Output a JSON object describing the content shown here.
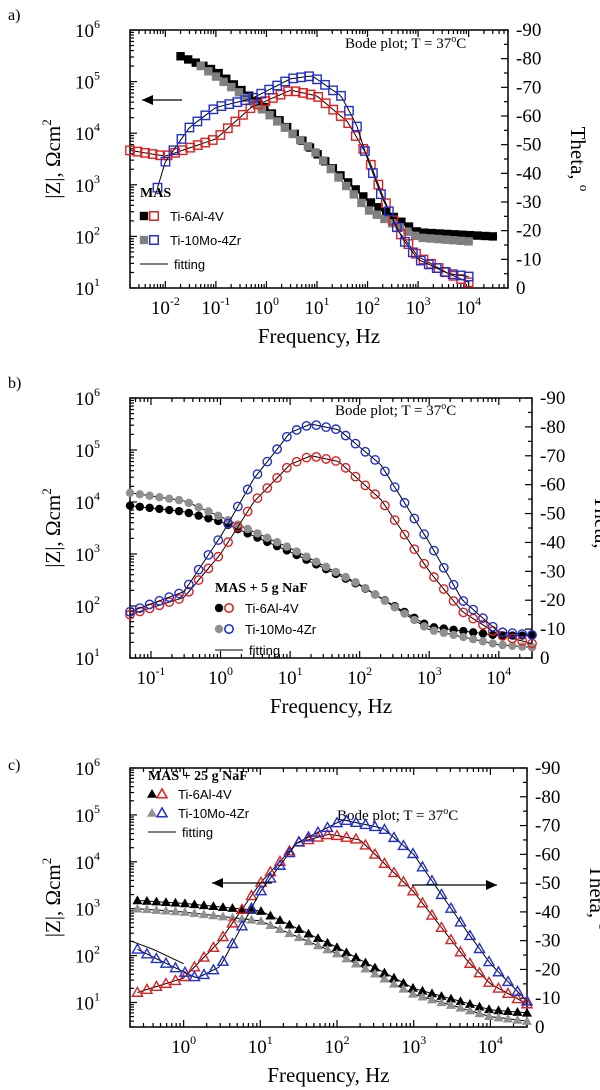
{
  "chart_data": [
    {
      "type": "line",
      "panel_label": "a)",
      "title": "Bode plot; T = 37°C",
      "title_parts": {
        "prefix": "Bode plot; T = 37",
        "sup": "o",
        "suffix": "C"
      },
      "xlabel": "Frequency, Hz",
      "ylabel_left": "|Z|, Ωcm",
      "ylabel_left_sup": "2",
      "ylabel_right": "Theta, ",
      "ylabel_right_sup": "o",
      "x_scale": "log",
      "xlim": [
        0.002,
        60000
      ],
      "ylim_left": [
        10,
        1000000
      ],
      "ylim_right": [
        0,
        -90
      ],
      "x_ticks": [
        {
          "value": 0.01,
          "base": "10",
          "exp": "-2"
        },
        {
          "value": 0.1,
          "base": "10",
          "exp": "-1"
        },
        {
          "value": 1,
          "base": "10",
          "exp": "0"
        },
        {
          "value": 10,
          "base": "10",
          "exp": "1"
        },
        {
          "value": 100,
          "base": "10",
          "exp": "2"
        },
        {
          "value": 1000,
          "base": "10",
          "exp": "3"
        },
        {
          "value": 10000,
          "base": "10",
          "exp": "4"
        }
      ],
      "y_left_ticks": [
        {
          "value": 10,
          "base": "10",
          "exp": "1"
        },
        {
          "value": 100,
          "base": "10",
          "exp": "2"
        },
        {
          "value": 1000,
          "base": "10",
          "exp": "3"
        },
        {
          "value": 10000,
          "base": "10",
          "exp": "4"
        },
        {
          "value": 100000,
          "base": "10",
          "exp": "5"
        },
        {
          "value": 1000000,
          "base": "10",
          "exp": "6"
        }
      ],
      "y_right_ticks": [
        "0",
        "-10",
        "-20",
        "-30",
        "-40",
        "-50",
        "-60",
        "-70",
        "-80",
        "-90"
      ],
      "legend": {
        "heading": "MAS",
        "entries": [
          "Ti-6Al-4V",
          "Ti-10Mo-4Zr",
          "fitting"
        ],
        "placement": "lower-left"
      },
      "arrows": [
        {
          "direction": "left",
          "axis": "left"
        }
      ],
      "series": [
        {
          "name": "Ti-6Al-4V",
          "quantity": "modulus",
          "marker": "square-filled",
          "color": "#000000",
          "x_range": [
            0.02,
            30000
          ],
          "points": 42,
          "anchors": [
            [
              0.02,
              310000
            ],
            [
              0.1,
              160000
            ],
            [
              1,
              30000
            ],
            [
              10,
              4000
            ],
            [
              100,
              500
            ],
            [
              1000,
              120
            ],
            [
              30000,
              100
            ]
          ]
        },
        {
          "name": "Ti-10Mo-4Zr",
          "quantity": "modulus",
          "marker": "square-filled",
          "color": "#808080",
          "x_range": [
            0.05,
            10000
          ],
          "points": 36,
          "anchors": [
            [
              0.05,
              200000
            ],
            [
              0.3,
              60000
            ],
            [
              1,
              25000
            ],
            [
              10,
              4000
            ],
            [
              100,
              330
            ],
            [
              1000,
              95
            ],
            [
              10000,
              80
            ]
          ]
        },
        {
          "name": "Ti-6Al-4V",
          "quantity": "phase",
          "marker": "square-open",
          "color": "#e02020",
          "x_range": [
            0.002,
            10000
          ],
          "points": 46,
          "anchors": [
            [
              0.002,
              -48
            ],
            [
              0.01,
              -46
            ],
            [
              0.1,
              -52
            ],
            [
              0.5,
              -63
            ],
            [
              3,
              -69
            ],
            [
              10,
              -67
            ],
            [
              40,
              -58
            ],
            [
              100,
              -46
            ],
            [
              200,
              -32
            ],
            [
              400,
              -20
            ],
            [
              1000,
              -11
            ],
            [
              4000,
              -5
            ],
            [
              10000,
              -2
            ]
          ]
        },
        {
          "name": "Ti-10Mo-4Zr",
          "quantity": "phase",
          "marker": "square-open",
          "color": "#2030d0",
          "x_range": [
            0.007,
            10000
          ],
          "points": 40,
          "anchors": [
            [
              0.007,
              -35
            ],
            [
              0.01,
              -44
            ],
            [
              0.03,
              -56
            ],
            [
              0.1,
              -63
            ],
            [
              0.5,
              -66
            ],
            [
              3,
              -73
            ],
            [
              8,
              -74
            ],
            [
              30,
              -67
            ],
            [
              60,
              -57
            ],
            [
              100,
              -45
            ],
            [
              200,
              -31
            ],
            [
              500,
              -17
            ],
            [
              1000,
              -10
            ],
            [
              4000,
              -5
            ],
            [
              10000,
              -4
            ]
          ]
        }
      ]
    },
    {
      "type": "line",
      "panel_label": "b)",
      "title": "Bode plot; T = 37°C",
      "title_parts": {
        "prefix": "Bode plot; T = 37",
        "sup": "o",
        "suffix": "C"
      },
      "xlabel": "Frequency, Hz",
      "ylabel_left": "|Z|, Ωcm",
      "ylabel_left_sup": "2",
      "ylabel_right": "Theta, ",
      "ylabel_right_sup": "o",
      "x_scale": "log",
      "xlim": [
        0.05,
        30000
      ],
      "ylim_left": [
        10,
        1000000
      ],
      "ylim_right": [
        0,
        -90
      ],
      "x_ticks": [
        {
          "value": 0.1,
          "base": "10",
          "exp": "-1"
        },
        {
          "value": 1,
          "base": "10",
          "exp": "0"
        },
        {
          "value": 10,
          "base": "10",
          "exp": "1"
        },
        {
          "value": 100,
          "base": "10",
          "exp": "2"
        },
        {
          "value": 1000,
          "base": "10",
          "exp": "3"
        },
        {
          "value": 10000,
          "base": "10",
          "exp": "4"
        }
      ],
      "y_left_ticks": [
        {
          "value": 10,
          "base": "10",
          "exp": "1"
        },
        {
          "value": 100,
          "base": "10",
          "exp": "2"
        },
        {
          "value": 1000,
          "base": "10",
          "exp": "3"
        },
        {
          "value": 10000,
          "base": "10",
          "exp": "4"
        },
        {
          "value": 100000,
          "base": "10",
          "exp": "5"
        },
        {
          "value": 1000000,
          "base": "10",
          "exp": "6"
        }
      ],
      "y_right_ticks": [
        "0",
        "-10",
        "-20",
        "-30",
        "-40",
        "-50",
        "-60",
        "-70",
        "-80",
        "-90"
      ],
      "legend": {
        "heading": "MAS + 5 g NaF",
        "entries": [
          "Ti-6Al-4V",
          "Ti-10Mo-4Zr",
          "fitting"
        ],
        "placement": "lower-center"
      },
      "arrows": [],
      "series": [
        {
          "name": "Ti-6Al-4V",
          "quantity": "modulus",
          "marker": "circle-filled",
          "color": "#000000",
          "x_range": [
            0.05,
            30000
          ],
          "points": 42,
          "anchors": [
            [
              0.05,
              8500
            ],
            [
              0.3,
              6500
            ],
            [
              1,
              4200
            ],
            [
              10,
              1100
            ],
            [
              100,
              250
            ],
            [
              1000,
              40
            ],
            [
              10000,
              27
            ],
            [
              30000,
              27
            ]
          ]
        },
        {
          "name": "Ti-10Mo-4Zr",
          "quantity": "modulus",
          "marker": "circle-filled",
          "color": "#909090",
          "x_range": [
            0.05,
            30000
          ],
          "points": 42,
          "anchors": [
            [
              0.05,
              15000
            ],
            [
              0.3,
              10500
            ],
            [
              1,
              5200
            ],
            [
              10,
              1300
            ],
            [
              100,
              260
            ],
            [
              1000,
              35
            ],
            [
              10000,
              18
            ],
            [
              30000,
              16
            ]
          ]
        },
        {
          "name": "Ti-6Al-4V",
          "quantity": "phase",
          "marker": "circle-open",
          "color": "#e02020",
          "x_range": [
            0.05,
            30000
          ],
          "points": 42,
          "anchors": [
            [
              0.05,
              -15
            ],
            [
              0.3,
              -21
            ],
            [
              1,
              -36
            ],
            [
              3,
              -54
            ],
            [
              10,
              -67
            ],
            [
              20,
              -70
            ],
            [
              50,
              -68
            ],
            [
              200,
              -55
            ],
            [
              1000,
              -30
            ],
            [
              3000,
              -16
            ],
            [
              10000,
              -8
            ],
            [
              30000,
              -5
            ]
          ]
        },
        {
          "name": "Ti-10Mo-4Zr",
          "quantity": "phase",
          "marker": "circle-open",
          "color": "#2030d0",
          "x_range": [
            0.05,
            30000
          ],
          "points": 42,
          "anchors": [
            [
              0.05,
              -16
            ],
            [
              0.3,
              -23
            ],
            [
              1,
              -42
            ],
            [
              3,
              -62
            ],
            [
              10,
              -78
            ],
            [
              20,
              -81
            ],
            [
              50,
              -79
            ],
            [
              200,
              -67
            ],
            [
              1000,
              -40
            ],
            [
              3000,
              -20
            ],
            [
              10000,
              -9
            ],
            [
              30000,
              -8
            ]
          ]
        }
      ]
    },
    {
      "type": "line",
      "panel_label": "c)",
      "title": "Bode plot; T = 37°C",
      "title_parts": {
        "prefix": "Bode plot; T = 37",
        "sup": "o",
        "suffix": "C"
      },
      "xlabel": "Frequency, Hz",
      "ylabel_left": "|Z|, Ωcm",
      "ylabel_left_sup": "2",
      "ylabel_right": "Theta, ",
      "ylabel_right_sup": "o",
      "x_scale": "log",
      "xlim": [
        0.2,
        30000
      ],
      "ylim_left": [
        3,
        1000000
      ],
      "ylim_right": [
        0,
        -90
      ],
      "x_ticks": [
        {
          "value": 1,
          "base": "10",
          "exp": "0"
        },
        {
          "value": 10,
          "base": "10",
          "exp": "1"
        },
        {
          "value": 100,
          "base": "10",
          "exp": "2"
        },
        {
          "value": 1000,
          "base": "10",
          "exp": "3"
        },
        {
          "value": 10000,
          "base": "10",
          "exp": "4"
        }
      ],
      "y_left_ticks": [
        {
          "value": 10,
          "base": "10",
          "exp": "1"
        },
        {
          "value": 100,
          "base": "10",
          "exp": "2"
        },
        {
          "value": 1000,
          "base": "10",
          "exp": "3"
        },
        {
          "value": 10000,
          "base": "10",
          "exp": "4"
        },
        {
          "value": 100000,
          "base": "10",
          "exp": "5"
        },
        {
          "value": 1000000,
          "base": "10",
          "exp": "6"
        }
      ],
      "y_right_ticks": [
        "0",
        "-10",
        "-20",
        "-30",
        "-40",
        "-50",
        "-60",
        "-70",
        "-80",
        "-90"
      ],
      "legend": {
        "heading": "MAS + 25 g NaF",
        "entries": [
          "Ti-6Al-4V",
          "Ti-10Mo-4Zr",
          "fitting"
        ],
        "placement": "top-left"
      },
      "arrows": [
        {
          "direction": "left",
          "axis": "left"
        },
        {
          "direction": "right",
          "axis": "right"
        }
      ],
      "series": [
        {
          "name": "Ti-6Al-4V",
          "quantity": "modulus",
          "marker": "triangle-filled",
          "color": "#000000",
          "x_range": [
            0.25,
            30000
          ],
          "points": 42,
          "anchors": [
            [
              0.25,
              1500
            ],
            [
              1,
              1300
            ],
            [
              10,
              900
            ],
            [
              100,
              150
            ],
            [
              1000,
              20
            ],
            [
              10000,
              7
            ],
            [
              30000,
              6
            ]
          ]
        },
        {
          "name": "Ti-10Mo-4Zr",
          "quantity": "modulus",
          "marker": "triangle-filled",
          "color": "#909090",
          "x_range": [
            0.25,
            30000
          ],
          "points": 42,
          "anchors": [
            [
              0.25,
              1000
            ],
            [
              1,
              850
            ],
            [
              10,
              550
            ],
            [
              100,
              110
            ],
            [
              1000,
              15
            ],
            [
              10000,
              5
            ],
            [
              30000,
              4
            ]
          ]
        },
        {
          "name": "Ti-6Al-4V",
          "quantity": "phase",
          "marker": "triangle-open",
          "color": "#e02020",
          "x_range": [
            0.25,
            30000
          ],
          "points": 42,
          "anchors": [
            [
              0.25,
              -12
            ],
            [
              1,
              -17
            ],
            [
              3,
              -30
            ],
            [
              10,
              -50
            ],
            [
              30,
              -64
            ],
            [
              80,
              -67
            ],
            [
              200,
              -65
            ],
            [
              1000,
              -47
            ],
            [
              5000,
              -23
            ],
            [
              10000,
              -15
            ],
            [
              30000,
              -8
            ]
          ]
        },
        {
          "name": "Ti-10Mo-4Zr",
          "quantity": "phase",
          "marker": "triangle-open",
          "color": "#2030d0",
          "x_range": [
            0.25,
            30000
          ],
          "points": 42,
          "anchors": [
            [
              0.25,
              -27
            ],
            [
              0.6,
              -22
            ],
            [
              1.5,
              -17
            ],
            [
              3,
              -21
            ],
            [
              10,
              -47
            ],
            [
              30,
              -64
            ],
            [
              120,
              -72
            ],
            [
              400,
              -69
            ],
            [
              1000,
              -60
            ],
            [
              5000,
              -33
            ],
            [
              10000,
              -22
            ],
            [
              30000,
              -9
            ]
          ]
        },
        {
          "name": "fitting",
          "quantity": "phase",
          "marker": "none",
          "color": "#000000",
          "x_range": [
            0.2,
            1
          ],
          "points": 0,
          "anchors": [
            [
              0.2,
              -30
            ],
            [
              0.4,
              -27
            ],
            [
              1,
              -22
            ]
          ]
        }
      ]
    }
  ]
}
